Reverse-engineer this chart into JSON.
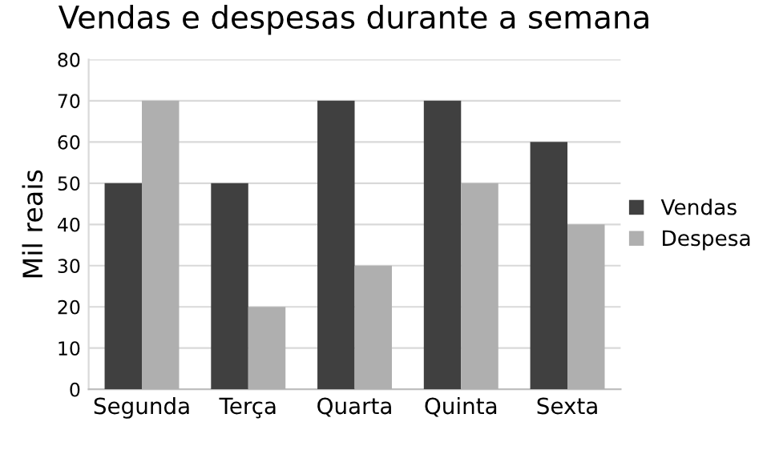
{
  "chart_data": {
    "type": "bar",
    "title": "Vendas e despesas durante a semana",
    "ylabel": "Mil reais",
    "categories": [
      "Segunda",
      "Terça",
      "Quarta",
      "Quinta",
      "Sexta"
    ],
    "series": [
      {
        "name": "Vendas",
        "color": "#404040",
        "values": [
          50,
          50,
          70,
          70,
          60
        ]
      },
      {
        "name": "Despesa",
        "color": "#afafaf",
        "values": [
          70,
          20,
          30,
          50,
          40
        ]
      }
    ],
    "ylim": [
      0,
      80
    ],
    "yticks": [
      0,
      10,
      20,
      30,
      40,
      50,
      60,
      70,
      80
    ],
    "grid": "y",
    "legend": "right"
  }
}
